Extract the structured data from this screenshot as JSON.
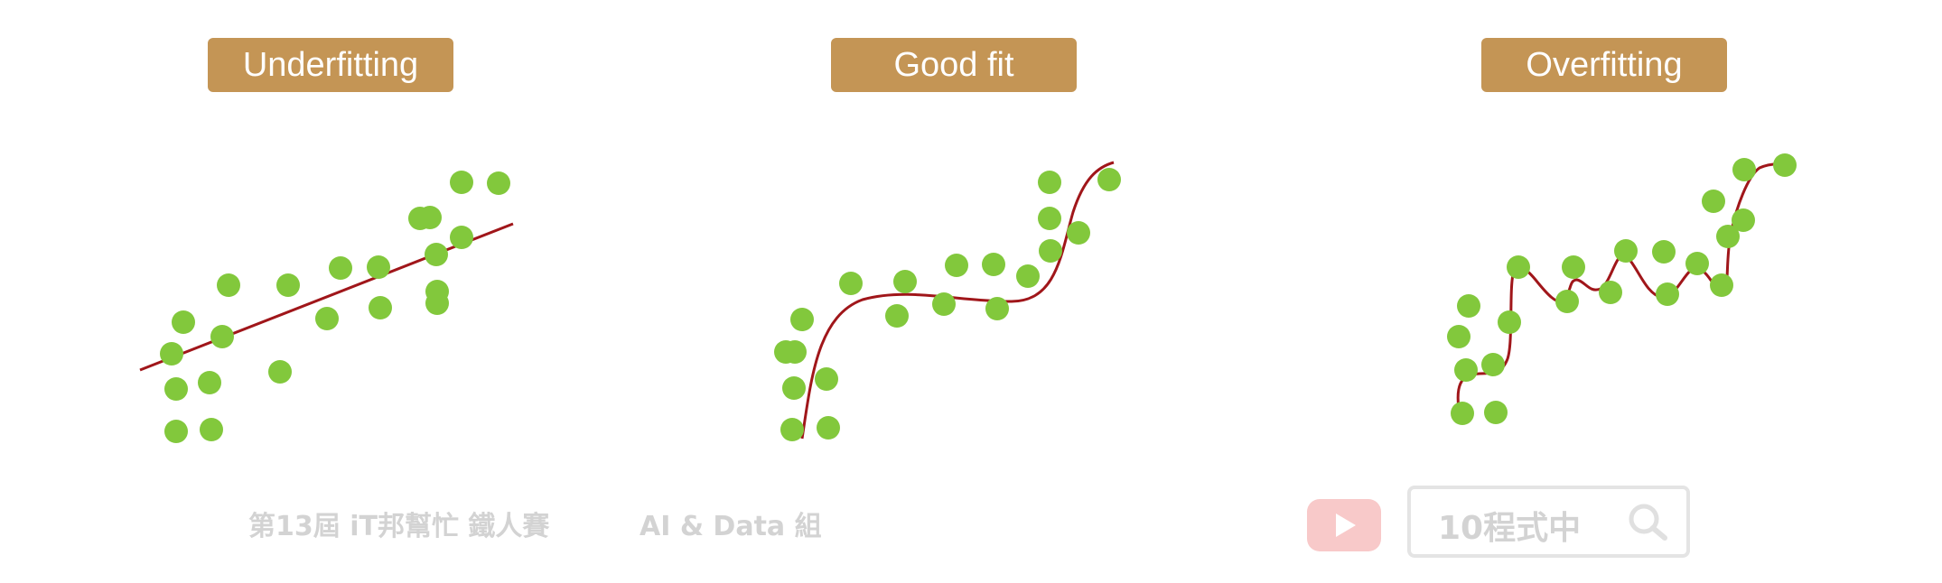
{
  "panels": [
    {
      "title": "Underfitting",
      "fit": "linear",
      "points": [
        [
          253,
          316
        ],
        [
          319,
          316
        ],
        [
          203,
          357
        ],
        [
          246,
          373
        ],
        [
          190,
          392
        ],
        [
          310,
          412
        ],
        [
          195,
          431
        ],
        [
          232,
          424
        ],
        [
          195,
          478
        ],
        [
          234,
          476
        ],
        [
          377,
          297
        ],
        [
          419,
          296
        ],
        [
          362,
          353
        ],
        [
          421,
          341
        ],
        [
          484,
          323
        ],
        [
          476,
          241
        ],
        [
          511,
          202
        ],
        [
          552,
          203
        ],
        [
          465,
          242
        ],
        [
          483,
          282
        ],
        [
          511,
          263
        ],
        [
          484,
          336
        ]
      ]
    },
    {
      "title": "Good fit",
      "fit": "polynomial",
      "points": [
        [
          888,
          354
        ],
        [
          942,
          314
        ],
        [
          880,
          390
        ],
        [
          870,
          390
        ],
        [
          879,
          430
        ],
        [
          915,
          420
        ],
        [
          877,
          476
        ],
        [
          917,
          474
        ],
        [
          993,
          350
        ],
        [
          1002,
          312
        ],
        [
          1045,
          337
        ],
        [
          1059,
          294
        ],
        [
          1100,
          293
        ],
        [
          1104,
          342
        ],
        [
          1138,
          306
        ],
        [
          1162,
          242
        ],
        [
          1163,
          278
        ],
        [
          1194,
          258
        ],
        [
          1162,
          202
        ],
        [
          1228,
          199
        ]
      ]
    },
    {
      "title": "Overfitting",
      "fit": "high-degree-polynomial",
      "points": [
        [
          1626,
          339
        ],
        [
          1615,
          373
        ],
        [
          1623,
          410
        ],
        [
          1671,
          357
        ],
        [
          1681,
          296
        ],
        [
          1653,
          404
        ],
        [
          1619,
          458
        ],
        [
          1656,
          457
        ],
        [
          1735,
          334
        ],
        [
          1742,
          296
        ],
        [
          1783,
          324
        ],
        [
          1800,
          278
        ],
        [
          1842,
          279
        ],
        [
          1846,
          326
        ],
        [
          1879,
          292
        ],
        [
          1906,
          316
        ],
        [
          1897,
          223
        ],
        [
          1913,
          262
        ],
        [
          1930,
          244
        ],
        [
          1931,
          188
        ],
        [
          1976,
          183
        ]
      ]
    }
  ],
  "colors": {
    "point": "#82c83c",
    "curve": "#a0161a",
    "label_bg": "#c49555",
    "label_text": "#ffffff"
  },
  "watermark": {
    "contest": "第13屆 iT邦幫忙 鐵人賽",
    "group": "AI & Data 組",
    "search_text": "10程式中",
    "play_icon": "youtube-play-icon",
    "search_icon": "search-icon"
  }
}
